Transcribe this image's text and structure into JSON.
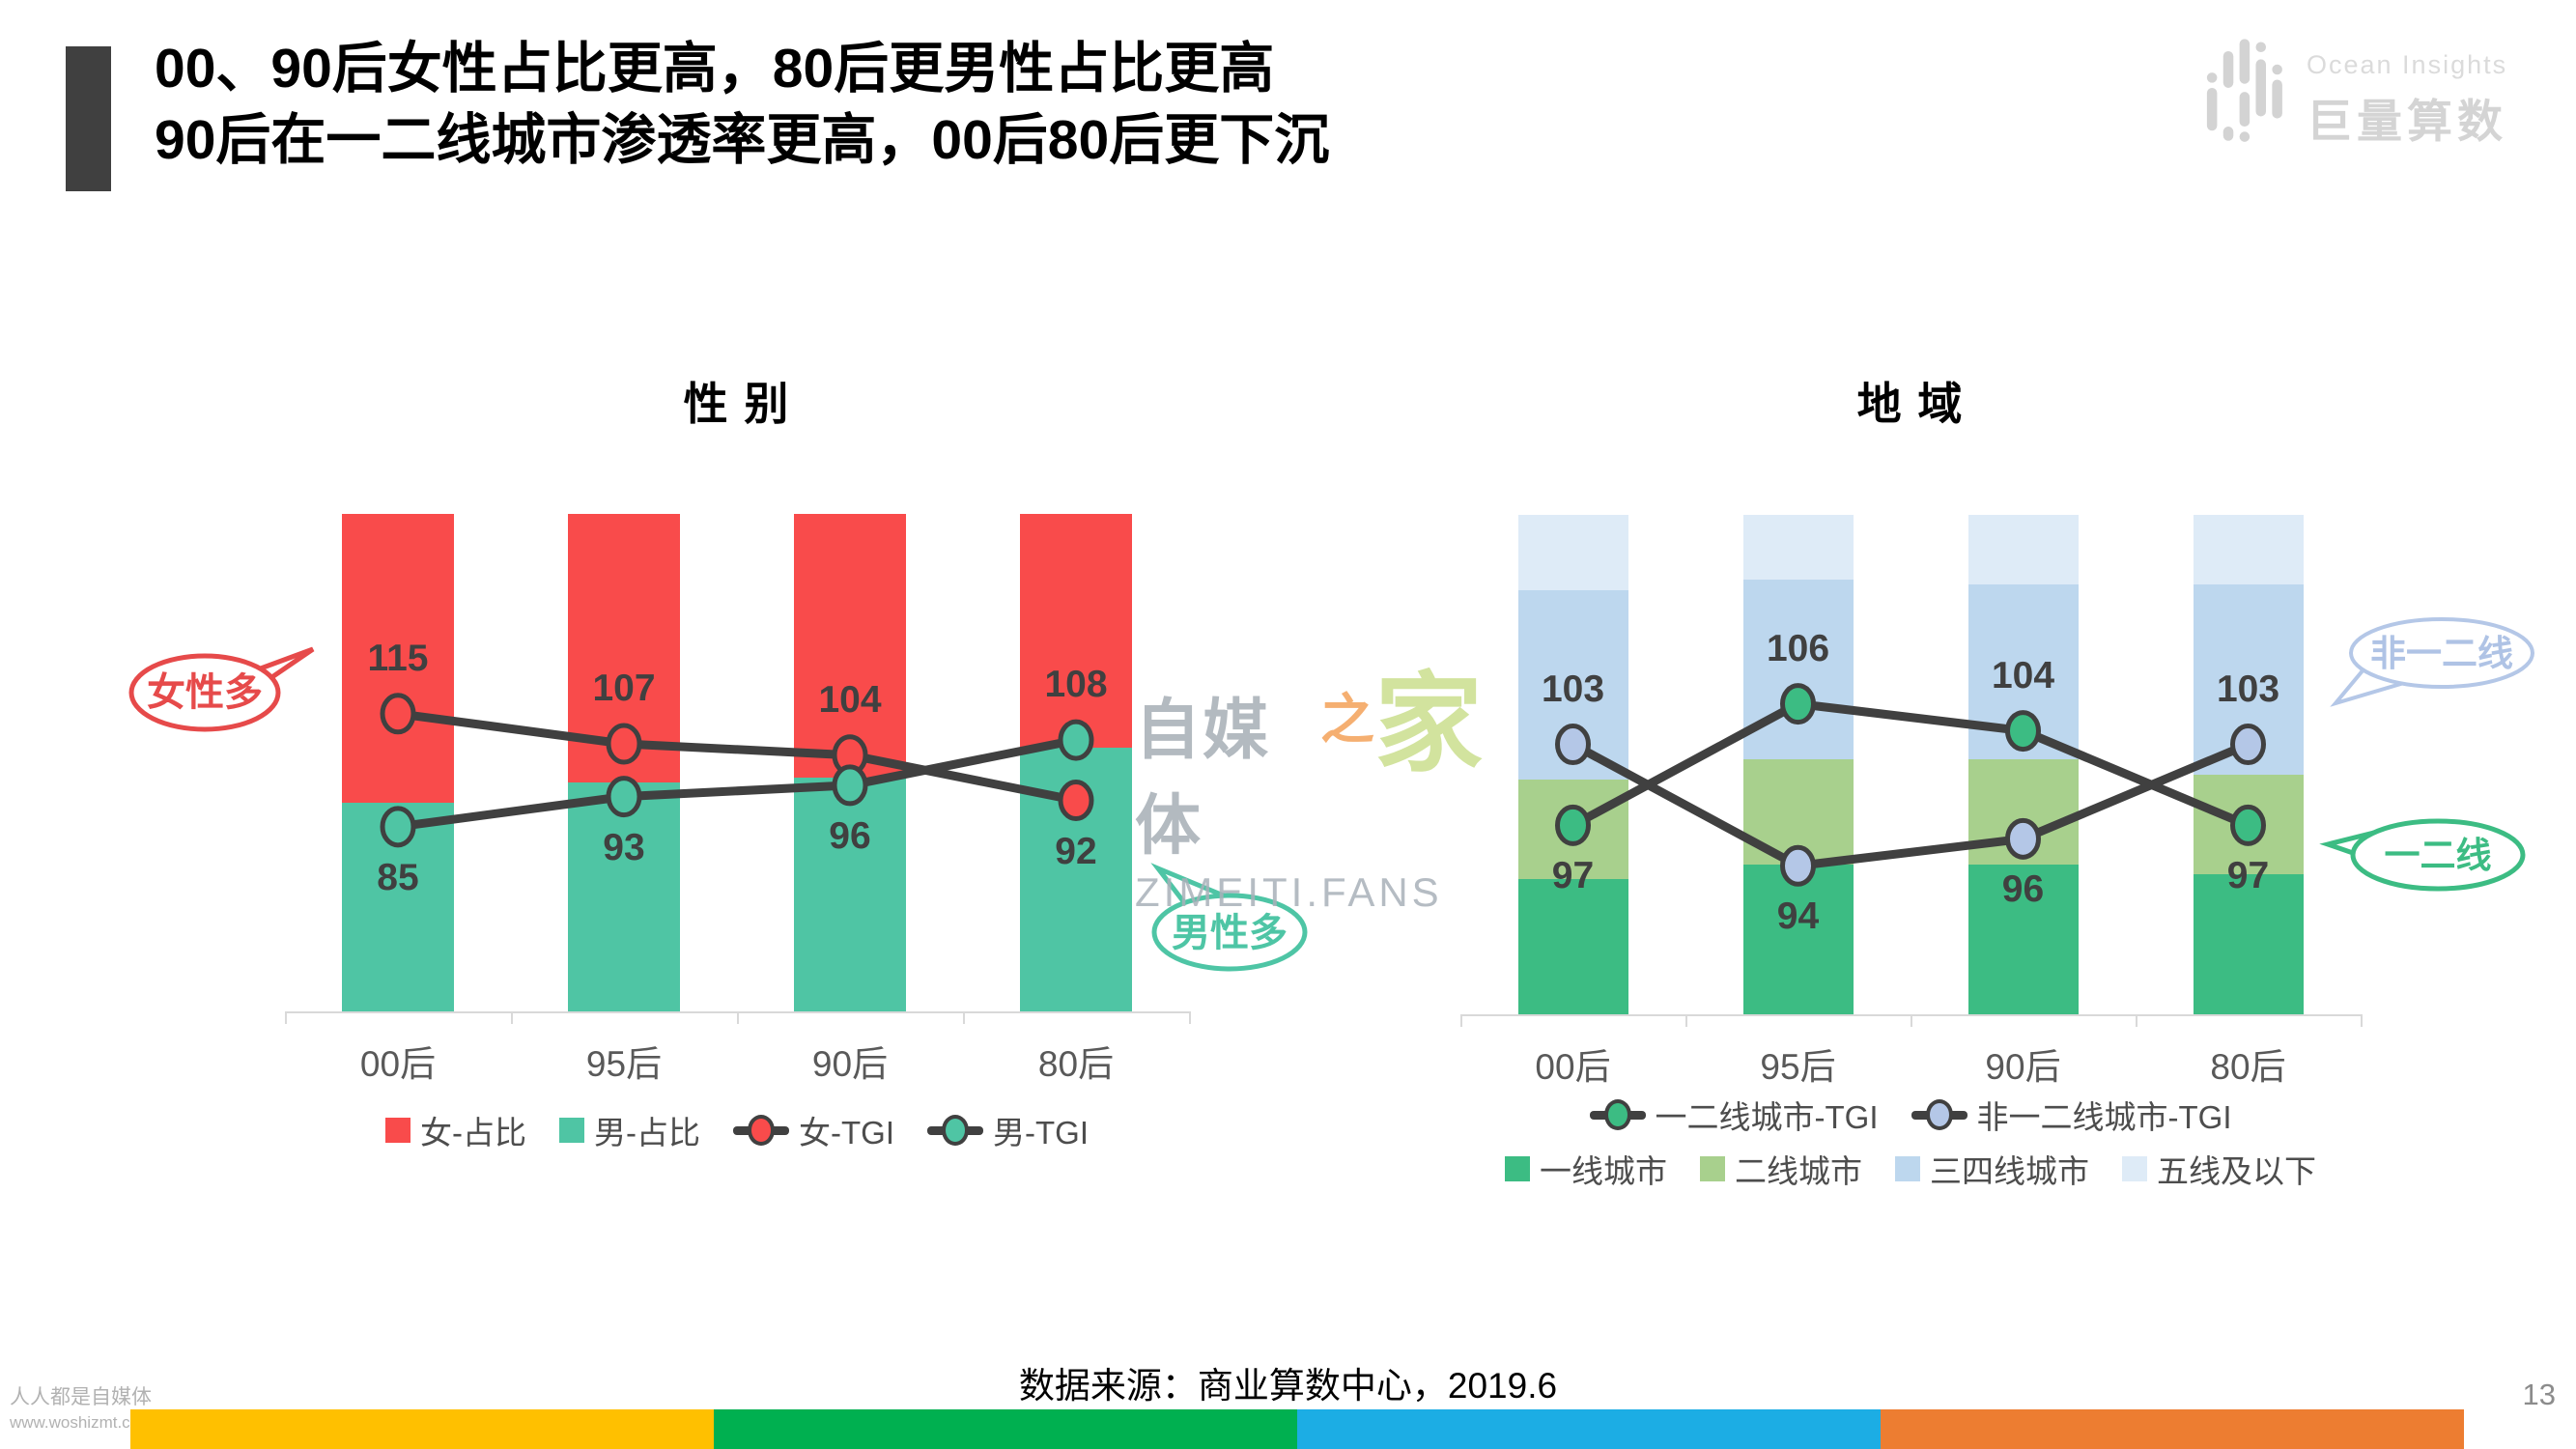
{
  "slide": {
    "title_line1": "00、90后女性占比更高，80后更男性占比更高",
    "title_line2": "90后在一二线城市渗透率更高，00后80后更下沉",
    "source_note": "数据来源：商业算数中心，2019.6",
    "page_number": "13"
  },
  "brand": {
    "name_en": "Ocean Insights",
    "name_cn": "巨量算数"
  },
  "watermark": {
    "center_part1": "自媒体",
    "center_part2": "之",
    "center_part3": "家",
    "center_sub": "ZIMEITI.FANS",
    "corner_line1": "人人都是自媒体",
    "corner_line2": "www.woshizmt.cn"
  },
  "callouts": {
    "female_more": "女性多",
    "male_more": "男性多",
    "non_tier12": "非一二线",
    "tier12": "一二线"
  },
  "footer_bar_colors": [
    "#FFC000",
    "#00B050",
    "#1CADE4",
    "#ED7D31"
  ],
  "chart_data": [
    {
      "type": "bar",
      "subtype": "stacked-100-with-tgi-lines",
      "title": "性 别",
      "categories": [
        "00后",
        "95后",
        "90后",
        "80后"
      ],
      "bar_series": [
        {
          "name": "女-占比",
          "color": "#F94B4B",
          "values": [
            58,
            54,
            53,
            47
          ]
        },
        {
          "name": "男-占比",
          "color": "#4FC5A4",
          "values": [
            42,
            46,
            47,
            53
          ]
        }
      ],
      "stack_bottom_to_top": [
        1,
        0
      ],
      "line_series": [
        {
          "name": "女-TGI",
          "marker_color": "#F94B4B",
          "values": [
            115,
            107,
            104,
            92
          ]
        },
        {
          "name": "男-TGI",
          "marker_color": "#4FC5A4",
          "values": [
            85,
            93,
            96,
            108
          ]
        }
      ],
      "line_color": "#404040",
      "line_axis_range": [
        36,
        168
      ],
      "bar_unit": "%",
      "grid": false,
      "legend_position": "bottom"
    },
    {
      "type": "bar",
      "subtype": "stacked-100-with-tgi-lines",
      "title": "地 域",
      "categories": [
        "00后",
        "95后",
        "90后",
        "80后"
      ],
      "bar_series": [
        {
          "name": "一线城市",
          "color": "#3CBC83",
          "values": [
            27,
            30,
            30,
            28
          ]
        },
        {
          "name": "二线城市",
          "color": "#A8D08D",
          "values": [
            20,
            21,
            21,
            20
          ]
        },
        {
          "name": "三四线城市",
          "color": "#BDD7EE",
          "values": [
            38,
            36,
            35,
            38
          ]
        },
        {
          "name": "五线及以下",
          "color": "#DEEBF7",
          "values": [
            15,
            13,
            14,
            14
          ]
        }
      ],
      "stack_bottom_to_top": [
        0,
        1,
        2,
        3
      ],
      "line_series": [
        {
          "name": "一二线城市-TGI",
          "marker_color": "#3CBC83",
          "values": [
            97,
            106,
            104,
            97
          ]
        },
        {
          "name": "非一二线城市-TGI",
          "marker_color": "#B4C7E7",
          "values": [
            103,
            94,
            96,
            103
          ]
        }
      ],
      "line_color": "#404040",
      "line_axis_range": [
        83,
        120
      ],
      "bar_unit": "%",
      "grid": false,
      "legend_position": "bottom"
    }
  ]
}
